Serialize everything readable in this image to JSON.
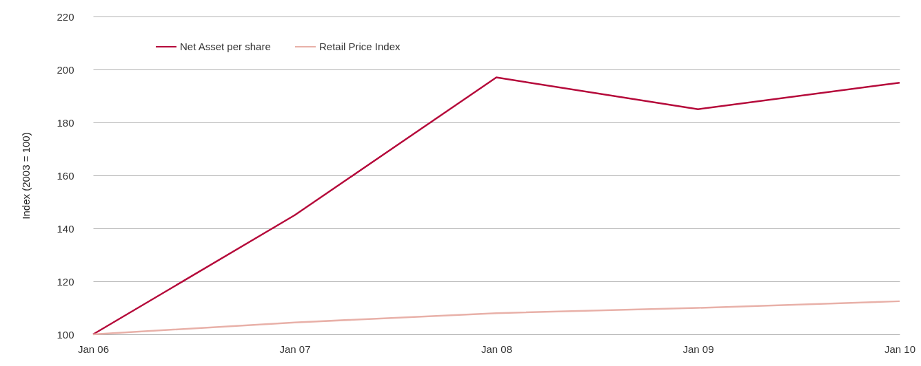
{
  "chart_data": {
    "type": "line",
    "ylabel": "Index (2003 = 100)",
    "categories": [
      "Jan 06",
      "Jan 07",
      "Jan 08",
      "Jan 09",
      "Jan 10"
    ],
    "series": [
      {
        "name": "Net Asset per share",
        "color": "#b5093a",
        "values": [
          100,
          145,
          197,
          185,
          195
        ]
      },
      {
        "name": "Retail Price Index",
        "color": "#e8b0a8",
        "values": [
          100,
          104.5,
          108,
          110,
          112.5
        ]
      }
    ],
    "ylim": [
      100,
      220
    ],
    "yticks": [
      100,
      120,
      140,
      160,
      180,
      200,
      220
    ],
    "grid": "y",
    "legend": "top left",
    "marker": "none",
    "line_style": "solid"
  }
}
